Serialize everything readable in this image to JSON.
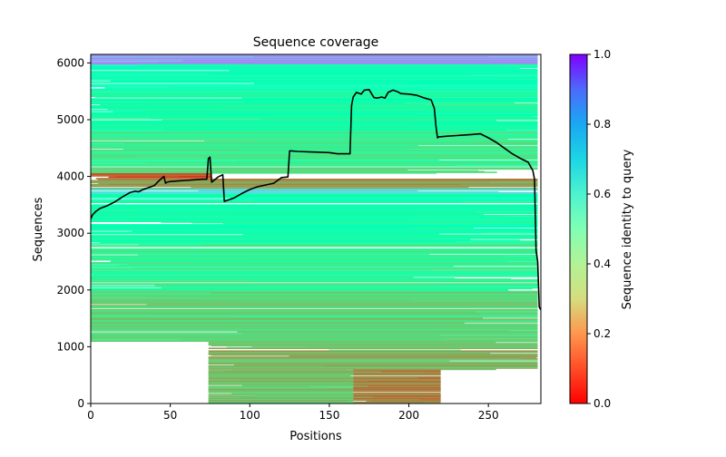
{
  "chart_data": {
    "type": "heatmap",
    "title": "Sequence coverage",
    "xlabel": "Positions",
    "ylabel": "Sequences",
    "xlim": [
      0,
      283
    ],
    "ylim": [
      0,
      6150
    ],
    "xticks": [
      0,
      50,
      100,
      150,
      200,
      250
    ],
    "yticks": [
      0,
      1000,
      2000,
      3000,
      4000,
      5000,
      6000
    ],
    "colorbar": {
      "label": "Sequence identity to query",
      "range": [
        0,
        1
      ],
      "ticks": [
        0.0,
        0.2,
        0.4,
        0.6,
        0.8,
        1.0
      ],
      "tick_labels": [
        "0.0",
        "0.2",
        "0.4",
        "0.6",
        "0.8",
        "1.0"
      ],
      "colormap": "rainbow_r"
    },
    "bands": [
      {
        "y0": 5980,
        "y1": 6150,
        "x0": 0,
        "x1": 281,
        "identity": 0.8
      },
      {
        "y0": 5500,
        "y1": 5980,
        "x0": 0,
        "x1": 281,
        "identity": 0.5
      },
      {
        "y0": 4800,
        "y1": 5500,
        "x0": 0,
        "x1": 281,
        "identity": 0.45
      },
      {
        "y0": 4150,
        "y1": 4800,
        "x0": 0,
        "x1": 281,
        "identity": 0.38
      },
      {
        "y0": 4060,
        "y1": 4150,
        "x0": 0,
        "x1": 281,
        "identity": 0.32
      },
      {
        "y0": 3950,
        "y1": 4060,
        "x0": 0,
        "x1": 76,
        "identity": 0.12
      },
      {
        "y0": 3780,
        "y1": 3950,
        "x0": 0,
        "x1": 281,
        "identity": 0.22
      },
      {
        "y0": 3700,
        "y1": 3780,
        "x0": 0,
        "x1": 281,
        "identity": 0.68
      },
      {
        "y0": 2800,
        "y1": 3700,
        "x0": 0,
        "x1": 281,
        "identity": 0.47
      },
      {
        "y0": 2000,
        "y1": 2800,
        "x0": 0,
        "x1": 281,
        "identity": 0.4
      },
      {
        "y0": 1100,
        "y1": 2000,
        "x0": 0,
        "x1": 281,
        "identity": 0.32
      },
      {
        "y0": 600,
        "y1": 1100,
        "x0": 74,
        "x1": 281,
        "identity": 0.25
      },
      {
        "y0": 0,
        "y1": 600,
        "x0": 165,
        "x1": 220,
        "identity": 0.18
      },
      {
        "y0": 0,
        "y1": 600,
        "x0": 74,
        "x1": 165,
        "identity": 0.28
      }
    ],
    "series": [
      {
        "name": "coverage",
        "color": "#000000",
        "x": [
          0,
          1,
          3,
          6,
          10,
          15,
          20,
          25,
          28,
          30,
          33,
          35,
          38,
          40,
          42,
          44,
          46,
          47,
          48,
          50,
          55,
          60,
          65,
          70,
          73,
          74,
          75,
          76,
          77,
          80,
          83,
          84,
          86,
          90,
          95,
          100,
          105,
          110,
          115,
          120,
          124,
          125,
          126,
          130,
          140,
          150,
          155,
          160,
          163,
          164,
          165,
          167,
          170,
          172,
          175,
          178,
          180,
          183,
          185,
          187,
          190,
          193,
          195,
          200,
          205,
          210,
          214,
          216,
          217,
          218,
          219,
          220,
          225,
          230,
          240,
          245,
          250,
          255,
          260,
          265,
          270,
          275,
          278,
          279,
          280,
          281,
          282,
          283
        ],
        "y": [
          3250,
          3320,
          3380,
          3440,
          3480,
          3550,
          3640,
          3720,
          3740,
          3730,
          3770,
          3790,
          3820,
          3840,
          3900,
          3950,
          4000,
          3880,
          3900,
          3910,
          3920,
          3930,
          3940,
          3950,
          3950,
          4320,
          4340,
          3900,
          3920,
          3990,
          4030,
          3560,
          3580,
          3620,
          3700,
          3770,
          3820,
          3850,
          3880,
          3980,
          3990,
          4450,
          4450,
          4440,
          4430,
          4420,
          4400,
          4400,
          4400,
          5250,
          5400,
          5480,
          5450,
          5520,
          5530,
          5390,
          5380,
          5400,
          5380,
          5480,
          5520,
          5490,
          5460,
          5450,
          5430,
          5380,
          5350,
          5200,
          4900,
          4680,
          4700,
          4700,
          4710,
          4720,
          4740,
          4750,
          4680,
          4600,
          4500,
          4400,
          4320,
          4250,
          4100,
          3950,
          2700,
          2500,
          1700,
          1650
        ]
      }
    ]
  }
}
